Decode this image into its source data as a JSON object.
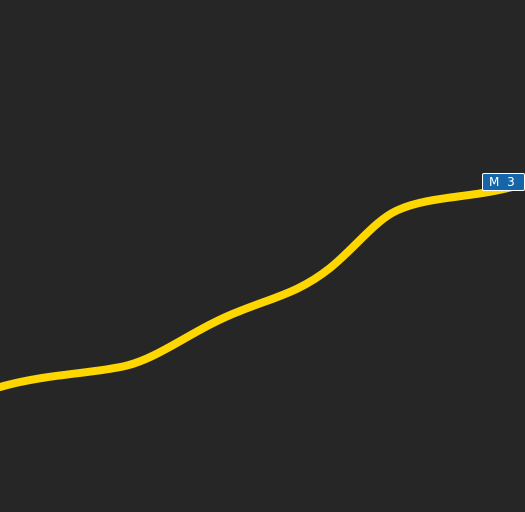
{
  "map": {
    "background_color": "#262626",
    "road": {
      "class": "motorway",
      "color": "#ffd700",
      "shield": {
        "label": "M 3",
        "background_color": "#1565a8",
        "text_color": "#ffffff"
      }
    }
  }
}
